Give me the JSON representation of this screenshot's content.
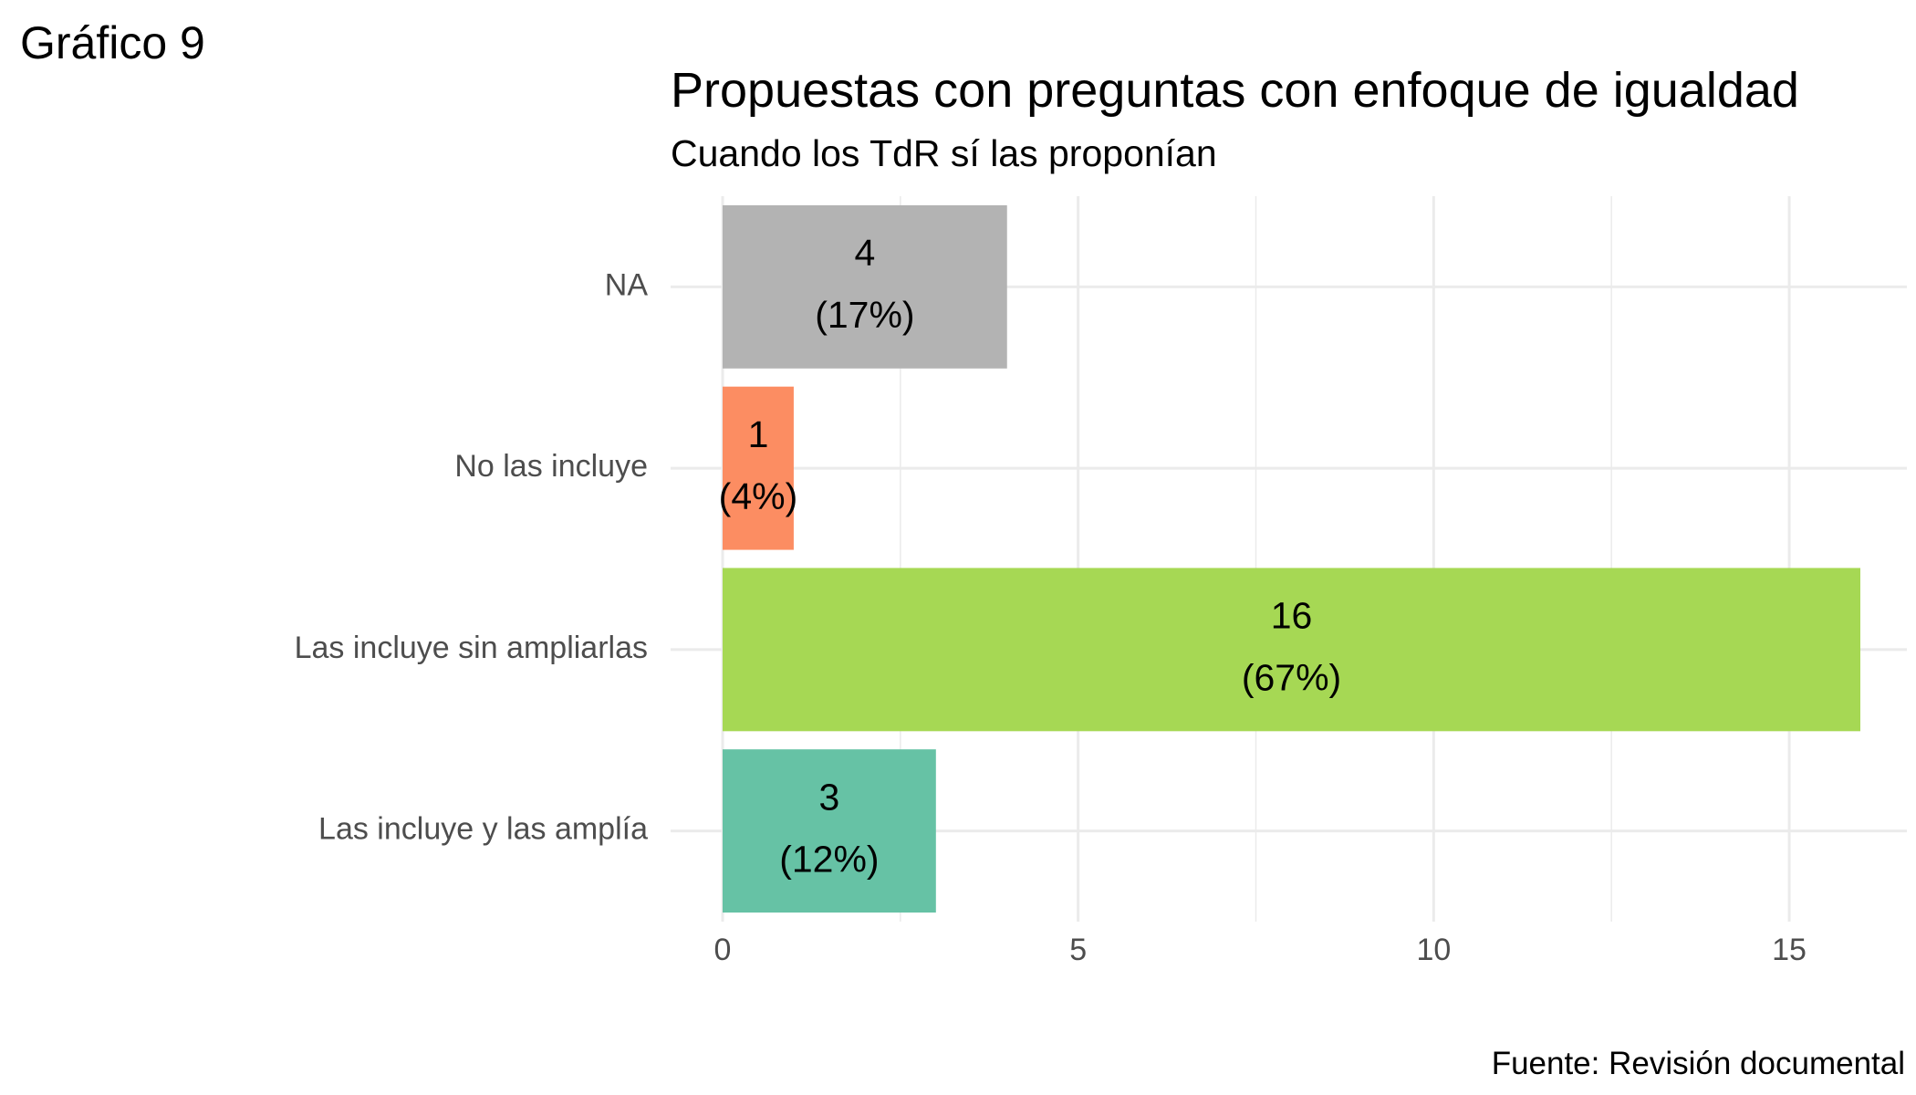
{
  "figure_label": "Gráfico 9",
  "caption": "Fuente: Revisión documental",
  "colors": {
    "grid": "#ebebeb",
    "axis_text": "#4d4d4d"
  },
  "chart_data": {
    "type": "bar",
    "orientation": "horizontal",
    "title": "Propuestas con preguntas con enfoque de igualdad",
    "subtitle": "Cuando los TdR sí las proponían",
    "xlabel": "",
    "ylabel": "",
    "xlim": [
      0,
      16.8
    ],
    "x_ticks": [
      0,
      5,
      10,
      15
    ],
    "grid": true,
    "legend": "none",
    "categories": [
      "NA",
      "No las incluye",
      "Las incluye sin ampliarlas",
      "Las incluye y las amplía"
    ],
    "values": [
      4,
      1,
      16,
      3
    ],
    "percent_labels": [
      "(17%)",
      "(4%)",
      "(67%)",
      "(12%)"
    ],
    "bar_colors": [
      "#b3b3b3",
      "#fc8d62",
      "#a6d854",
      "#66c2a5"
    ]
  }
}
